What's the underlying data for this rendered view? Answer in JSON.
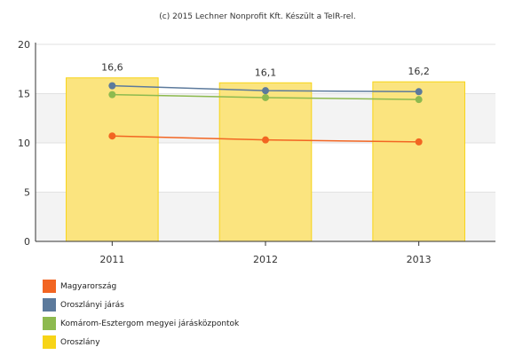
{
  "credit": "(c) 2015 Lechner Nonprofit Kft. Készült a TeIR-rel.",
  "chart_data": {
    "type": "bar",
    "categories": [
      "2011",
      "2012",
      "2013"
    ],
    "ylim": [
      0,
      20
    ],
    "yticks": [
      0,
      5,
      10,
      15,
      20
    ],
    "grid": "alternating horizontal bands",
    "legend_position": "bottom-left",
    "bar_series": {
      "name": "Oroszlány",
      "values": [
        16.6,
        16.1,
        16.2
      ],
      "labels": [
        "16,6",
        "16,1",
        "16,2"
      ],
      "color": "#f7d417",
      "fill": "#fbe47f"
    },
    "line_series": [
      {
        "name": "Magyarország",
        "values": [
          10.7,
          10.3,
          10.1
        ],
        "color": "#f26522"
      },
      {
        "name": "Oroszlányi járás",
        "values": [
          15.8,
          15.3,
          15.2
        ],
        "color": "#5c7a9c"
      },
      {
        "name": "Komárom-Esztergom megyei járásközpontok",
        "values": [
          14.9,
          14.6,
          14.4
        ],
        "color": "#8dba4f"
      }
    ]
  },
  "legend": [
    {
      "label": "Magyarország",
      "color": "#f26522"
    },
    {
      "label": "Oroszlányi járás",
      "color": "#5c7a9c"
    },
    {
      "label": "Komárom-Esztergom megyei járásközpontok",
      "color": "#8dba4f"
    },
    {
      "label": "Oroszlány",
      "color": "#f7d417"
    }
  ]
}
